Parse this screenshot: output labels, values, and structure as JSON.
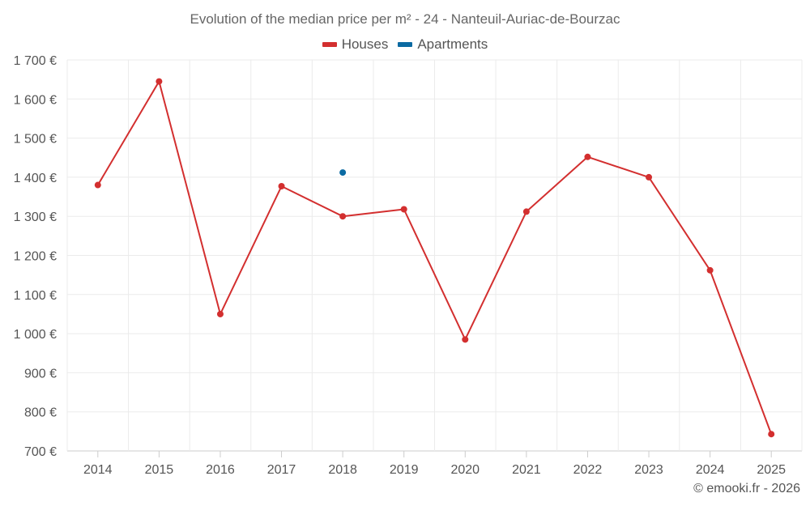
{
  "chart_data": {
    "type": "line",
    "title": "Evolution of the median price per m² - 24 - Nanteuil-Auriac-de-Bourzac",
    "xlabel": "",
    "ylabel": "",
    "categories": [
      "2014",
      "2015",
      "2016",
      "2017",
      "2018",
      "2019",
      "2020",
      "2021",
      "2022",
      "2023",
      "2024",
      "2025"
    ],
    "ylim": [
      700,
      1700
    ],
    "yticks": [
      700,
      800,
      900,
      1000,
      1100,
      1200,
      1300,
      1400,
      1500,
      1600,
      1700
    ],
    "ytick_labels": [
      "700 €",
      "800 €",
      "900 €",
      "1 000 €",
      "1 100 €",
      "1 200 €",
      "1 300 €",
      "1 400 €",
      "1 500 €",
      "1 600 €",
      "1 700 €"
    ],
    "grid": true,
    "legend_position": "top-center",
    "series": [
      {
        "name": "Houses",
        "color": "#d32f2f",
        "values": [
          1380,
          1645,
          1050,
          1377,
          1300,
          1318,
          985,
          1312,
          1452,
          1400,
          1162,
          743
        ]
      },
      {
        "name": "Apartments",
        "color": "#0b6aa2",
        "values": [
          null,
          null,
          null,
          null,
          1412,
          null,
          null,
          null,
          null,
          null,
          null,
          null
        ]
      }
    ]
  },
  "credit": "© emooki.fr - 2026"
}
